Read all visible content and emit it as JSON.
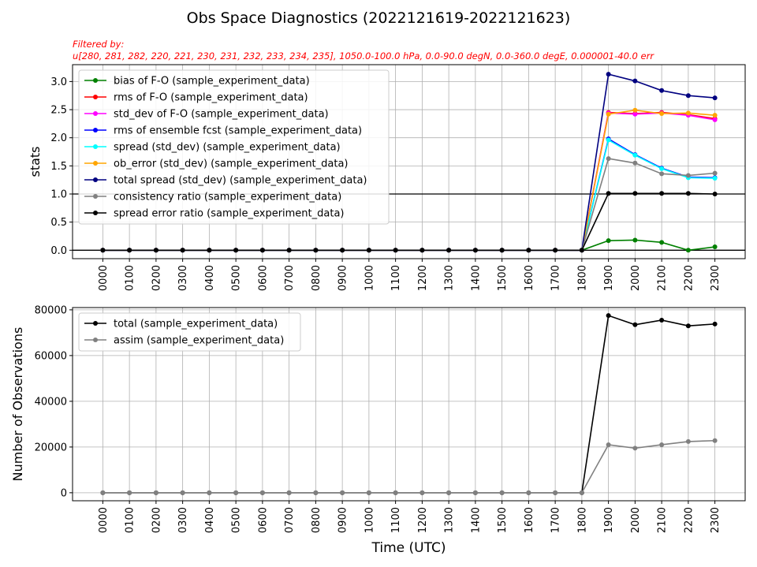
{
  "figure": {
    "title": "Obs Space Diagnostics (2022121619-2022121623)",
    "filter_line1": "Filtered by:",
    "filter_line2": "u[280, 281, 282, 220, 221, 230, 231, 232, 233, 234, 235],  1050.0-100.0 hPa,  0.0-90.0 degN,  0.0-360.0 degE,  0.000001-40.0 err",
    "filter_color": "#ff0000"
  },
  "chart_data": [
    {
      "type": "line",
      "ylabel": "stats",
      "xlabel": "",
      "categories": [
        "0000",
        "0100",
        "0200",
        "0300",
        "0400",
        "0500",
        "0600",
        "0700",
        "0800",
        "0900",
        "1000",
        "1100",
        "1200",
        "1300",
        "1400",
        "1500",
        "1600",
        "1700",
        "1800",
        "1900",
        "2000",
        "2100",
        "2200",
        "2300"
      ],
      "ylim": [
        -0.15,
        3.3
      ],
      "yticks": [
        0.0,
        0.5,
        1.0,
        1.5,
        2.0,
        2.5,
        3.0
      ],
      "hline": 1.0,
      "hline2": 0.0,
      "grid": true,
      "legend": "top-left",
      "series": [
        {
          "name": "bias of F-O (sample_experiment_data)",
          "color": "#008000",
          "values": [
            0,
            0,
            0,
            0,
            0,
            0,
            0,
            0,
            0,
            0,
            0,
            0,
            0,
            0,
            0,
            0,
            0,
            0,
            0,
            0.17,
            0.18,
            0.14,
            0.0,
            0.06
          ]
        },
        {
          "name": "rms of F-O (sample_experiment_data)",
          "color": "#ff0000",
          "values": [
            0,
            0,
            0,
            0,
            0,
            0,
            0,
            0,
            0,
            0,
            0,
            0,
            0,
            0,
            0,
            0,
            0,
            0,
            0,
            2.45,
            2.43,
            2.45,
            2.41,
            2.34
          ]
        },
        {
          "name": "std_dev of F-O (sample_experiment_data)",
          "color": "#ff00ff",
          "values": [
            0,
            0,
            0,
            0,
            0,
            0,
            0,
            0,
            0,
            0,
            0,
            0,
            0,
            0,
            0,
            0,
            0,
            0,
            0,
            2.44,
            2.42,
            2.44,
            2.4,
            2.32
          ]
        },
        {
          "name": "rms of ensemble fcst (sample_experiment_data)",
          "color": "#0000ff",
          "values": [
            0,
            0,
            0,
            0,
            0,
            0,
            0,
            0,
            0,
            0,
            0,
            0,
            0,
            0,
            0,
            0,
            0,
            0,
            0,
            1.98,
            1.7,
            1.46,
            1.3,
            1.29
          ]
        },
        {
          "name": "spread (std_dev) (sample_experiment_data)",
          "color": "#00ffff",
          "values": [
            0,
            0,
            0,
            0,
            0,
            0,
            0,
            0,
            0,
            0,
            0,
            0,
            0,
            0,
            0,
            0,
            0,
            0,
            0,
            1.96,
            1.69,
            1.45,
            1.29,
            1.28
          ]
        },
        {
          "name": "ob_error (std_dev) (sample_experiment_data)",
          "color": "#ffa500",
          "values": [
            0,
            0,
            0,
            0,
            0,
            0,
            0,
            0,
            0,
            0,
            0,
            0,
            0,
            0,
            0,
            0,
            0,
            0,
            0,
            2.42,
            2.49,
            2.43,
            2.44,
            2.4
          ]
        },
        {
          "name": "total spread (std_dev) (sample_experiment_data)",
          "color": "#000080",
          "values": [
            0,
            0,
            0,
            0,
            0,
            0,
            0,
            0,
            0,
            0,
            0,
            0,
            0,
            0,
            0,
            0,
            0,
            0,
            0,
            3.13,
            3.01,
            2.84,
            2.75,
            2.71
          ]
        },
        {
          "name": "consistency ratio (sample_experiment_data)",
          "color": "#808080",
          "values": [
            0,
            0,
            0,
            0,
            0,
            0,
            0,
            0,
            0,
            0,
            0,
            0,
            0,
            0,
            0,
            0,
            0,
            0,
            0,
            1.63,
            1.55,
            1.36,
            1.33,
            1.37
          ]
        },
        {
          "name": "spread error ratio (sample_experiment_data)",
          "color": "#000000",
          "values": [
            0,
            0,
            0,
            0,
            0,
            0,
            0,
            0,
            0,
            0,
            0,
            0,
            0,
            0,
            0,
            0,
            0,
            0,
            0,
            1.01,
            1.01,
            1.01,
            1.01,
            1.0
          ]
        }
      ]
    },
    {
      "type": "line",
      "ylabel": "Number of Observations",
      "xlabel": "Time (UTC)",
      "categories": [
        "0000",
        "0100",
        "0200",
        "0300",
        "0400",
        "0500",
        "0600",
        "0700",
        "0800",
        "0900",
        "1000",
        "1100",
        "1200",
        "1300",
        "1400",
        "1500",
        "1600",
        "1700",
        "1800",
        "1900",
        "2000",
        "2100",
        "2200",
        "2300"
      ],
      "ylim": [
        -3500,
        81000
      ],
      "yticks": [
        0,
        20000,
        40000,
        60000,
        80000
      ],
      "grid": true,
      "legend": "top-left",
      "series": [
        {
          "name": "total (sample_experiment_data)",
          "color": "#000000",
          "values": [
            0,
            0,
            0,
            0,
            0,
            0,
            0,
            0,
            0,
            0,
            0,
            0,
            0,
            0,
            0,
            0,
            0,
            0,
            0,
            77500,
            73500,
            75500,
            73000,
            73800
          ]
        },
        {
          "name": "assim (sample_experiment_data)",
          "color": "#808080",
          "values": [
            0,
            0,
            0,
            0,
            0,
            0,
            0,
            0,
            0,
            0,
            0,
            0,
            0,
            0,
            0,
            0,
            0,
            0,
            0,
            21000,
            19500,
            21000,
            22400,
            22800
          ]
        }
      ]
    }
  ]
}
